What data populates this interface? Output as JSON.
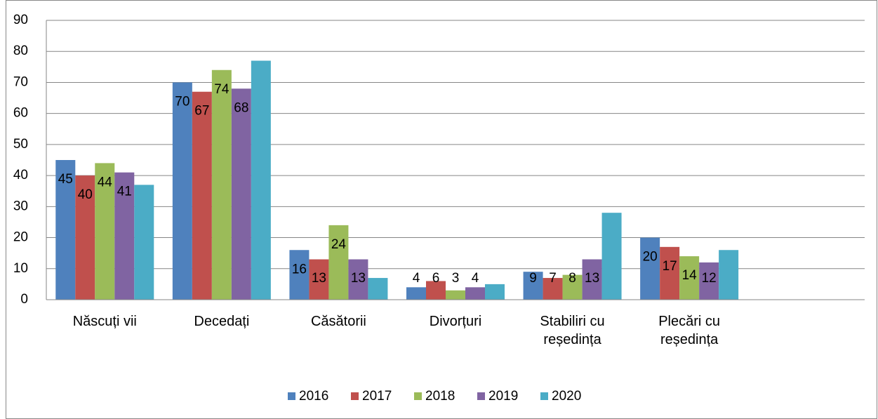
{
  "chart_data": {
    "type": "bar",
    "categories": [
      "Născuți vii",
      "Decedați",
      "Căsătorii",
      "Divorțuri",
      "Stabiliri cu reședința",
      "Plecări cu reședința",
      null
    ],
    "series": [
      {
        "name": "2016",
        "color": "#4f81bd",
        "show_labels": true,
        "values": [
          45,
          70,
          16,
          4,
          9,
          20,
          null
        ]
      },
      {
        "name": "2017",
        "color": "#c0504d",
        "show_labels": true,
        "values": [
          40,
          67,
          13,
          6,
          7,
          17,
          null
        ]
      },
      {
        "name": "2018",
        "color": "#9bbb59",
        "show_labels": true,
        "values": [
          44,
          74,
          24,
          3,
          8,
          14,
          null
        ]
      },
      {
        "name": "2019",
        "color": "#8064a2",
        "show_labels": true,
        "values": [
          41,
          68,
          13,
          4,
          13,
          12,
          null
        ]
      },
      {
        "name": "2020",
        "color": "#4bacc6",
        "show_labels": false,
        "values": [
          37,
          77,
          7,
          5,
          28,
          16,
          null
        ]
      }
    ],
    "ylim": [
      0,
      90
    ],
    "yticks": [
      0,
      10,
      20,
      30,
      40,
      50,
      60,
      70,
      80,
      90
    ],
    "grid": true,
    "legend": "bottom"
  }
}
